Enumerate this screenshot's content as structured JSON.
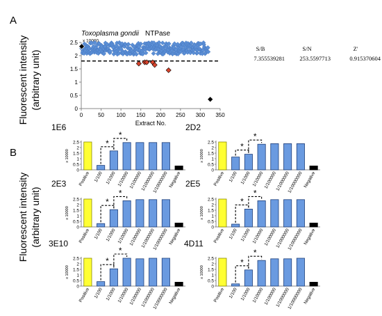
{
  "panels": {
    "a_label": "A",
    "b_label": "B"
  },
  "shared_ylabel": {
    "line1": "Fluorescent intensity",
    "line2": "(arbitrary unit)"
  },
  "stats": {
    "headers": [
      "S/B",
      "S/N",
      "Z'"
    ],
    "values": [
      "7.355539281",
      "253.5597713",
      "0.915370604"
    ]
  },
  "chart_data": [
    {
      "type": "scatter",
      "title": "Toxoplasma gondii NTPase",
      "xlabel": "Extract No.",
      "ylabel": "Fluorescent intensity (arbitrary unit)",
      "y_multiplier": "x 10000",
      "xlim": [
        0,
        350
      ],
      "ylim": [
        0,
        2.5
      ],
      "xticks": [
        0,
        50,
        100,
        150,
        200,
        250,
        300,
        350
      ],
      "yticks": [
        0,
        0.5,
        1,
        1.5,
        2,
        2.5
      ],
      "threshold": 1.8,
      "colors": {
        "samples": "#5b8fd6",
        "hits": "#d9442c",
        "controls": "#000000"
      },
      "series": [
        {
          "name": "",
          "role": "samples",
          "x_range": [
            1,
            320
          ],
          "y_range": [
            2.05,
            2.5
          ]
        },
        {
          "name": "",
          "role": "hits",
          "x": [
            145,
            160,
            165,
            180,
            185,
            220
          ],
          "y": [
            1.7,
            1.75,
            1.75,
            1.75,
            1.65,
            1.45
          ]
        },
        {
          "name": "",
          "role": "controls",
          "x": [
            1,
            325
          ],
          "y": [
            2.35,
            0.35
          ]
        }
      ]
    },
    {
      "type": "bar",
      "title": "1E6",
      "y_multiplier": "x 10000",
      "categories": [
        "Positive",
        "1/100",
        "1/1000",
        "1/10000",
        "1/100000",
        "1/1000000",
        "1/10000000",
        "Negative"
      ],
      "values": [
        2.5,
        0.4,
        1.7,
        2.45,
        2.45,
        2.45,
        2.45,
        0.35
      ],
      "ylim": [
        0,
        2.5
      ],
      "yticks": [
        0,
        0.5,
        1,
        1.5,
        2,
        2.5
      ],
      "significance": "*"
    },
    {
      "type": "bar",
      "title": "2D2",
      "y_multiplier": "x 10000",
      "categories": [
        "Positive",
        "1/100",
        "1/1000",
        "1/10000",
        "1/100000",
        "1/1000000",
        "1/10000000",
        "Negative"
      ],
      "values": [
        2.5,
        1.15,
        1.4,
        2.3,
        2.35,
        2.35,
        2.35,
        0.35
      ],
      "ylim": [
        0,
        2.5
      ],
      "yticks": [
        0,
        0.5,
        1,
        1.5,
        2,
        2.5
      ],
      "significance": "*"
    },
    {
      "type": "bar",
      "title": "2E3",
      "y_multiplier": "x 10000",
      "categories": [
        "Positive",
        "1/100",
        "1/1000",
        "1/10000",
        "1/100000",
        "1/1000000",
        "1/10000000",
        "Negative"
      ],
      "values": [
        2.5,
        0.3,
        1.55,
        2.35,
        2.45,
        2.45,
        2.45,
        0.35
      ],
      "ylim": [
        0,
        2.5
      ],
      "yticks": [
        0,
        0.5,
        1,
        1.5,
        2,
        2.5
      ],
      "significance": "*"
    },
    {
      "type": "bar",
      "title": "2E5",
      "y_multiplier": "x 10000",
      "categories": [
        "Positive",
        "1/100",
        "1/1000",
        "1/10000",
        "1/100000",
        "1/1000000",
        "1/10000000",
        "Negative"
      ],
      "values": [
        2.5,
        0.25,
        1.6,
        2.35,
        2.45,
        2.45,
        2.45,
        0.35
      ],
      "ylim": [
        0,
        2.5
      ],
      "yticks": [
        0,
        0.5,
        1,
        1.5,
        2,
        2.5
      ],
      "significance": "*"
    },
    {
      "type": "bar",
      "title": "3E10",
      "y_multiplier": "x 10000",
      "categories": [
        "Positive",
        "1/100",
        "1/1000",
        "1/10000",
        "1/100000",
        "1/1000000",
        "1/10000000",
        "Negative"
      ],
      "values": [
        2.5,
        0.4,
        1.55,
        2.5,
        2.45,
        2.5,
        2.5,
        0.35
      ],
      "ylim": [
        0,
        2.5
      ],
      "yticks": [
        0,
        0.5,
        1,
        1.5,
        2,
        2.5
      ],
      "significance": "*"
    },
    {
      "type": "bar",
      "title": "4D11",
      "y_multiplier": "x 10000",
      "categories": [
        "Positive",
        "1/100",
        "1/1000",
        "1/10000",
        "1/100000",
        "1/1000000",
        "1/10000000",
        "Negative"
      ],
      "values": [
        2.5,
        0.2,
        1.45,
        2.3,
        2.45,
        2.45,
        2.5,
        0.35
      ],
      "ylim": [
        0,
        2.5
      ],
      "yticks": [
        0,
        0.5,
        1,
        1.5,
        2,
        2.5
      ],
      "significance": "*"
    }
  ]
}
